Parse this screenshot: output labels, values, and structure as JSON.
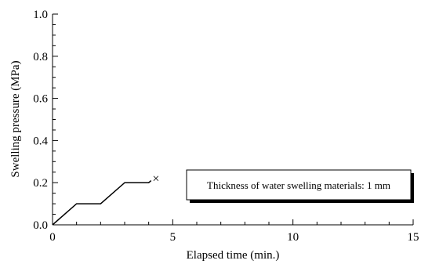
{
  "chart_data": {
    "type": "line",
    "xlabel": "Elapsed time  (min.)",
    "ylabel": "Swelling pressure  (MPa)",
    "xlim": [
      0,
      15
    ],
    "ylim": [
      0,
      1.0
    ],
    "x_ticks": [
      0,
      5,
      10,
      15
    ],
    "x_tick_labels": [
      "0",
      "5",
      "10",
      "15"
    ],
    "y_ticks": [
      0,
      0.2,
      0.4,
      0.6,
      0.8,
      1.0
    ],
    "y_tick_labels": [
      "0.0",
      "0.2",
      "0.4",
      "0.6",
      "0.8",
      "1.0"
    ],
    "grid": false,
    "series": [
      {
        "x": [
          0,
          1,
          2,
          3,
          4,
          4.1
        ],
        "y": [
          0,
          0.1,
          0.1,
          0.2,
          0.2,
          0.21
        ],
        "color": "#000000"
      }
    ],
    "end_marker": {
      "x": 4.3,
      "y": 0.22,
      "symbol": "×"
    },
    "annotation": "Thickness of water swelling materials: 1 mm"
  }
}
